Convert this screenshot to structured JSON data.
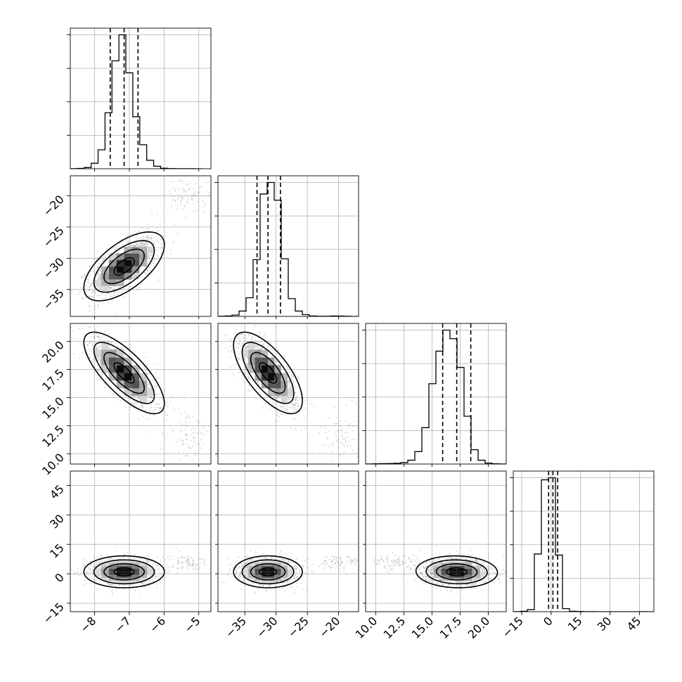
{
  "chart_data": {
    "type": "corner",
    "title": "",
    "grid": true,
    "parameters": [
      {
        "ticks": [
          -8,
          -7,
          -6,
          -5
        ],
        "tick_labels": [
          "−8",
          "−7",
          "−6",
          "−5"
        ],
        "range": [
          -8.7,
          -4.65
        ],
        "quantiles": [
          -7.55,
          -7.15,
          -6.75
        ],
        "mean": -7.15,
        "sd": 0.4
      },
      {
        "ticks": [
          -35,
          -30,
          -25,
          -20
        ],
        "tick_labels": [
          "−35",
          "−30",
          "−25",
          "−20"
        ],
        "range": [
          -39.3,
          -16.8
        ],
        "quantiles": [
          -33.05,
          -31.3,
          -29.3
        ],
        "mean": -31.3,
        "sd": 1.9
      },
      {
        "ticks": [
          10.0,
          12.5,
          15.0,
          17.5,
          20.0
        ],
        "tick_labels": [
          "10.0",
          "12.5",
          "15.0",
          "17.5",
          "20.0"
        ],
        "range": [
          9.1,
          21.6
        ],
        "quantiles": [
          15.95,
          17.2,
          18.45
        ],
        "mean": 17.2,
        "sd": 1.25
      },
      {
        "ticks": [
          -15,
          0,
          15,
          30,
          45
        ],
        "tick_labels": [
          "−15",
          "0",
          "15",
          "30",
          "45"
        ],
        "range": [
          -19.3,
          52.3
        ],
        "quantiles": [
          -1.3,
          0.9,
          3.3
        ],
        "mean": 1.0,
        "sd": 2.8
      }
    ],
    "histograms": [
      {
        "bins": [
          -8.7,
          -8.5,
          -8.3,
          -8.1,
          -7.9,
          -7.7,
          -7.5,
          -7.3,
          -7.1,
          -6.9,
          -6.7,
          -6.5,
          -6.3,
          -6.1,
          -5.9,
          -5.7,
          -5.5,
          -5.3,
          -5.1,
          -4.9
        ],
        "counts": [
          1,
          3,
          12,
          55,
          190,
          560,
          1080,
          1340,
          960,
          520,
          240,
          85,
          25,
          5,
          2,
          1,
          1,
          1,
          0
        ]
      },
      {
        "bins": [
          -39.3,
          -38.175,
          -37.05,
          -35.925,
          -34.8,
          -33.675,
          -32.55,
          -31.425,
          -30.3,
          -29.175,
          -28.05,
          -26.925,
          -25.8,
          -24.675,
          -23.55,
          -22.425,
          -21.3,
          -20.175,
          -19.05,
          -17.925,
          -16.8
        ],
        "counts": [
          2,
          5,
          15,
          60,
          210,
          640,
          1380,
          1510,
          1310,
          650,
          200,
          60,
          20,
          5,
          2,
          2,
          5,
          4,
          2,
          0
        ]
      },
      {
        "bins": [
          9.1,
          9.725,
          10.35,
          10.975,
          11.6,
          12.225,
          12.85,
          13.475,
          14.1,
          14.725,
          15.35,
          15.975,
          16.6,
          17.225,
          17.85,
          18.475,
          19.1,
          19.725,
          20.35,
          20.975,
          21.6
        ],
        "counts": [
          1,
          3,
          4,
          5,
          8,
          15,
          40,
          130,
          380,
          840,
          1180,
          1400,
          1310,
          1010,
          500,
          150,
          40,
          10,
          3,
          1
        ]
      },
      {
        "bins": [
          -19.3,
          -15.72,
          -12.14,
          -8.56,
          -4.98,
          -1.4,
          2.18,
          5.76,
          9.34,
          12.92,
          16.5,
          20.08,
          23.66,
          27.24,
          30.82,
          34.4,
          37.98,
          41.56,
          45.14,
          48.72,
          52.3
        ],
        "counts": [
          1,
          4,
          20,
          560,
          1280,
          1300,
          550,
          30,
          4,
          2,
          1,
          1,
          0,
          0,
          0,
          0,
          0,
          0,
          1,
          0
        ]
      }
    ],
    "correlations": [
      [
        1,
        0.62,
        -0.75,
        0.0
      ],
      [
        0.62,
        1,
        -0.68,
        0.0
      ],
      [
        -0.75,
        -0.68,
        1,
        -0.05
      ],
      [
        0.0,
        0.0,
        -0.05,
        1
      ]
    ],
    "outlier_clusters": [
      {
        "param": 0,
        "mean": -5.3,
        "sd": 0.3
      },
      {
        "param": 1,
        "mean": -20.0,
        "sd": 1.6
      },
      {
        "param": 2,
        "mean": 11.7,
        "sd": 1.1
      },
      {
        "param": 3,
        "mean": 6.0,
        "sd": 2.0
      }
    ],
    "contour_levels_sigma": [
      0.5,
      1.0,
      1.5,
      2.0
    ]
  },
  "colors": {
    "frame": "#000000",
    "grid": "#b0b0b0",
    "contour": "#000000",
    "scatter": "#7f7f7f"
  }
}
